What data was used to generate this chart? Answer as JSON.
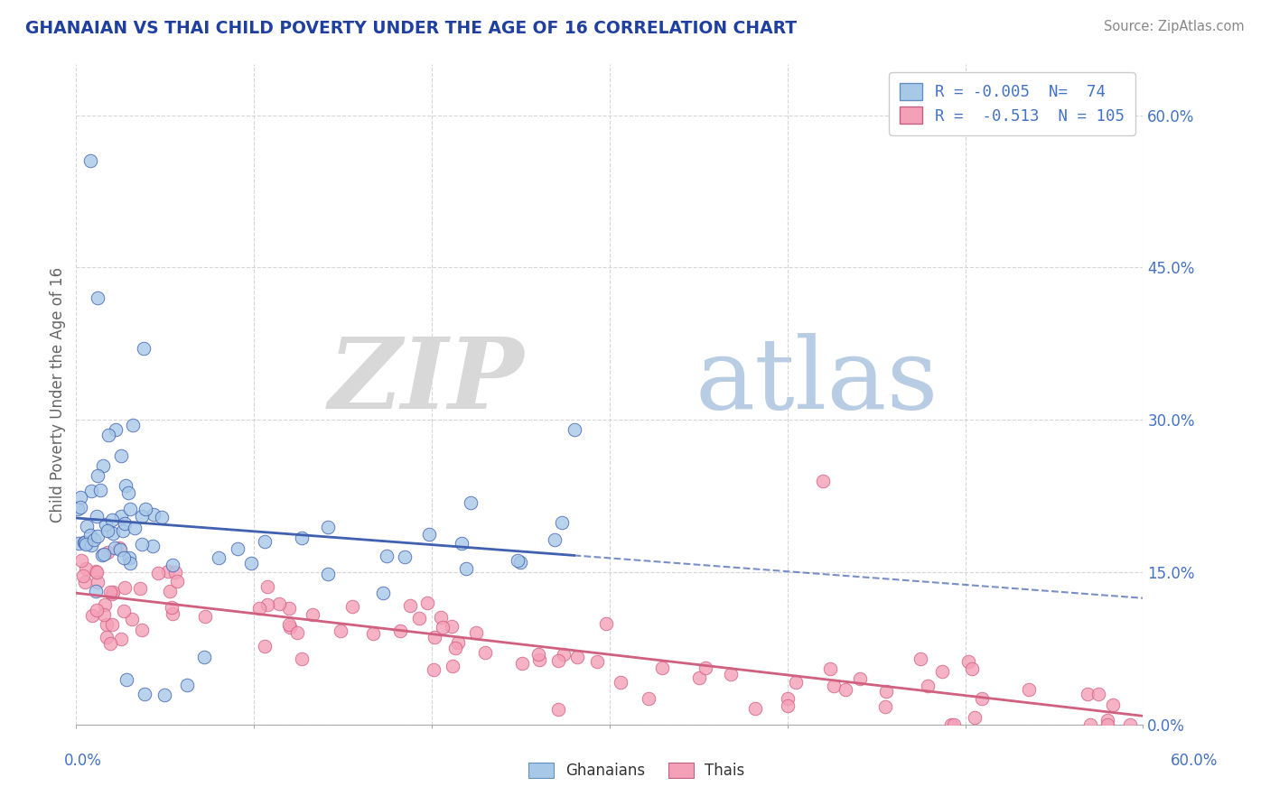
{
  "title": "GHANAIAN VS THAI CHILD POVERTY UNDER THE AGE OF 16 CORRELATION CHART",
  "source": "Source: ZipAtlas.com",
  "ylabel": "Child Poverty Under the Age of 16",
  "legend_label1": "Ghanaians",
  "legend_label2": "Thais",
  "R1": -0.005,
  "N1": 74,
  "R2": -0.513,
  "N2": 105,
  "blue_color": "#A8C8E8",
  "pink_color": "#F4A0B8",
  "blue_line_color": "#4060B0",
  "pink_line_color": "#D06080",
  "title_color": "#2040A0",
  "axis_label_color": "#4472C4",
  "background_color": "#FFFFFF",
  "xmin": 0.0,
  "xmax": 0.6,
  "ymin": 0.0,
  "ymax": 0.65
}
